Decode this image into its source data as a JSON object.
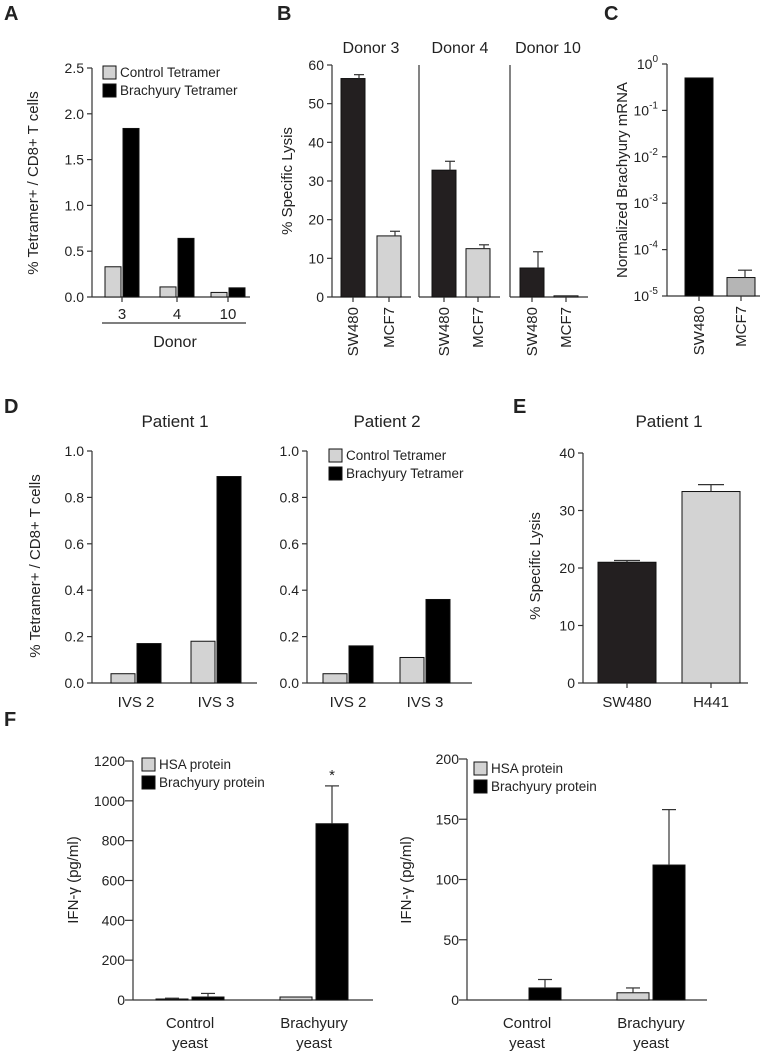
{
  "figure": {
    "panel_letters": [
      "A",
      "B",
      "C",
      "D",
      "E",
      "F"
    ]
  },
  "colors": {
    "light_bar": "#d3d3d3",
    "gray_bar": "#b5b5b5",
    "dark_bar": "#231f20",
    "black_bar": "#000000",
    "axis": "#333333"
  },
  "chart_data": [
    {
      "id": "A",
      "type": "bar",
      "ylabel": "% Tetramer+ / CD8+ T cells",
      "xlabel": "Donor",
      "categories": [
        "3",
        "4",
        "10"
      ],
      "ylim": [
        0,
        2.5
      ],
      "yticks": [
        "0.0",
        "0.5",
        "1.0",
        "1.5",
        "2.0",
        "2.5"
      ],
      "series": [
        {
          "name": "Control Tetramer",
          "values": [
            0.33,
            0.11,
            0.05
          ]
        },
        {
          "name": "Brachyury Tetramer",
          "values": [
            1.84,
            0.64,
            0.1
          ]
        }
      ],
      "legend": "top-left"
    },
    {
      "id": "B",
      "type": "bar",
      "ylabel": "% Specific Lysis",
      "ylim": [
        0,
        60
      ],
      "yticks": [
        "0",
        "10",
        "20",
        "30",
        "40",
        "50",
        "60"
      ],
      "panels": [
        {
          "title": "Donor 3",
          "categories": [
            "SW480",
            "MCF7"
          ],
          "values": [
            56.5,
            15.8
          ],
          "errors": [
            1.0,
            1.2
          ]
        },
        {
          "title": "Donor 4",
          "categories": [
            "SW480",
            "MCF7"
          ],
          "values": [
            32.8,
            12.5
          ],
          "errors": [
            2.3,
            1.0
          ]
        },
        {
          "title": "Donor 10",
          "categories": [
            "SW480",
            "MCF7"
          ],
          "values": [
            7.5,
            0.3
          ],
          "errors": [
            4.2,
            0
          ]
        }
      ]
    },
    {
      "id": "C",
      "type": "bar",
      "log_scale": true,
      "ylabel": "Normalized Brachyury mRNA",
      "categories": [
        "SW480",
        "MCF7"
      ],
      "values": [
        0.5,
        2.5e-05
      ],
      "errors": [
        0,
        1.1e-05
      ],
      "ylim": [
        1e-05,
        1
      ],
      "yticks": [
        {
          "base": "10",
          "exp": "0"
        },
        {
          "base": "10",
          "exp": "-1"
        },
        {
          "base": "10",
          "exp": "-2"
        },
        {
          "base": "10",
          "exp": "-3"
        },
        {
          "base": "10",
          "exp": "-4"
        },
        {
          "base": "10",
          "exp": "-5"
        }
      ]
    },
    {
      "id": "D1",
      "type": "bar",
      "title": "Patient 1",
      "ylabel": "% Tetramer+ / CD8+ T cells",
      "categories": [
        "IVS 2",
        "IVS 3"
      ],
      "ylim": [
        0,
        1.0
      ],
      "yticks": [
        "0.0",
        "0.2",
        "0.4",
        "0.6",
        "0.8",
        "1.0"
      ],
      "series": [
        {
          "values": [
            0.04,
            0.18
          ]
        },
        {
          "values": [
            0.17,
            0.89
          ]
        }
      ]
    },
    {
      "id": "D2",
      "type": "bar",
      "title": "Patient 2",
      "categories": [
        "IVS 2",
        "IVS 3"
      ],
      "ylim": [
        0,
        1.0
      ],
      "yticks": [
        "0.0",
        "0.2",
        "0.4",
        "0.6",
        "0.8",
        "1.0"
      ],
      "series": [
        {
          "name": "Control Tetramer",
          "values": [
            0.04,
            0.11
          ]
        },
        {
          "name": "Brachyury Tetramer",
          "values": [
            0.16,
            0.36
          ]
        }
      ],
      "legend": "top-left"
    },
    {
      "id": "E",
      "type": "bar",
      "title": "Patient 1",
      "ylabel": "% Specific Lysis",
      "categories": [
        "SW480",
        "H441"
      ],
      "values": [
        21,
        33.3
      ],
      "errors": [
        0.3,
        1.2
      ],
      "ylim": [
        0,
        40
      ],
      "yticks": [
        "0",
        "10",
        "20",
        "30",
        "40"
      ]
    },
    {
      "id": "F1",
      "type": "bar",
      "ylabel": "IFN-γ (pg/ml)",
      "categories": [
        [
          "Control",
          "yeast"
        ],
        [
          "Brachyury",
          "yeast"
        ]
      ],
      "ylim": [
        0,
        1200
      ],
      "yticks": [
        "0",
        "200",
        "400",
        "600",
        "800",
        "1000",
        "1200"
      ],
      "series": [
        {
          "name": "HSA protein",
          "values": [
            5,
            15
          ],
          "errors": [
            4,
            0
          ]
        },
        {
          "name": "Brachyury protein",
          "values": [
            15,
            885
          ],
          "errors": [
            18,
            190
          ]
        }
      ],
      "annotation": "*",
      "legend": "top-left"
    },
    {
      "id": "F2",
      "type": "bar",
      "ylabel": "IFN-γ (pg/ml)",
      "categories": [
        [
          "Control",
          "yeast"
        ],
        [
          "Brachyury",
          "yeast"
        ]
      ],
      "ylim": [
        0,
        200
      ],
      "yticks": [
        "0",
        "50",
        "100",
        "150",
        "200"
      ],
      "series": [
        {
          "name": "HSA protein",
          "values": [
            0,
            6
          ],
          "errors": [
            0,
            4
          ]
        },
        {
          "name": "Brachyury protein",
          "values": [
            10,
            112
          ],
          "errors": [
            7,
            46
          ]
        }
      ],
      "legend": "top-left"
    }
  ]
}
